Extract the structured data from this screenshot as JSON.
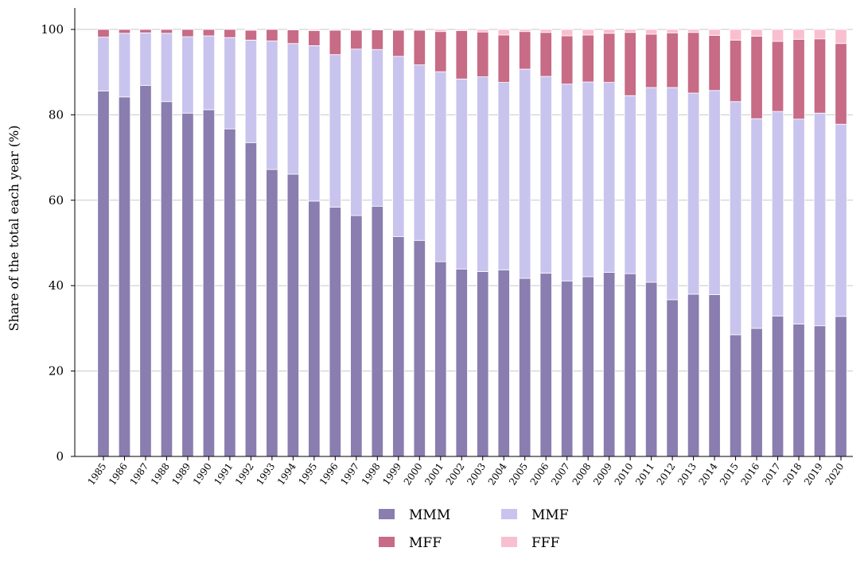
{
  "chart_data": {
    "type": "bar",
    "stacked": true,
    "ylabel": "Share of the total each year (%)",
    "xlabel": "",
    "ylim": [
      0,
      100
    ],
    "yticks": [
      0,
      20,
      40,
      60,
      80,
      100
    ],
    "grid": "horizontal",
    "legend_position": "bottom-center",
    "categories": [
      "1985",
      "1986",
      "1987",
      "1988",
      "1989",
      "1990",
      "1991",
      "1992",
      "1993",
      "1994",
      "1995",
      "1996",
      "1997",
      "1998",
      "1999",
      "2000",
      "2001",
      "2002",
      "2003",
      "2004",
      "2005",
      "2006",
      "2007",
      "2008",
      "2009",
      "2010",
      "2011",
      "2012",
      "2013",
      "2014",
      "2015",
      "2016",
      "2017",
      "2018",
      "2019",
      "2020"
    ],
    "series": [
      {
        "name": "MMM",
        "color": "#8a7daf",
        "values": [
          85.6,
          84.2,
          86.9,
          83.1,
          80.4,
          81.2,
          76.7,
          73.5,
          67.2,
          66.1,
          59.8,
          58.4,
          56.4,
          58.6,
          51.5,
          50.6,
          45.6,
          43.9,
          43.3,
          43.7,
          41.7,
          42.9,
          41.1,
          42.1,
          43.1,
          42.8,
          40.8,
          36.7,
          38.0,
          37.9,
          28.5,
          30.0,
          32.9,
          31.0,
          30.6,
          32.8
        ]
      },
      {
        "name": "MMF",
        "color": "#c9c4ee",
        "values": [
          12.6,
          14.9,
          12.3,
          16.0,
          17.9,
          17.3,
          21.4,
          24.0,
          30.1,
          30.6,
          36.4,
          35.7,
          39.0,
          36.7,
          42.2,
          41.1,
          44.5,
          44.5,
          45.6,
          43.9,
          49.0,
          46.1,
          46.1,
          45.6,
          44.5,
          41.7,
          45.6,
          49.7,
          47.1,
          47.8,
          54.6,
          49.1,
          47.9,
          48.0,
          49.8,
          45.0
        ]
      },
      {
        "name": "MFF",
        "color": "#c76b86",
        "values": [
          1.8,
          0.9,
          0.8,
          0.9,
          1.7,
          1.5,
          1.9,
          2.3,
          2.7,
          3.2,
          3.5,
          5.7,
          4.4,
          4.6,
          6.1,
          8.1,
          9.4,
          11.3,
          10.5,
          11.1,
          8.8,
          10.3,
          11.3,
          11.0,
          11.5,
          14.8,
          12.5,
          12.8,
          14.2,
          12.9,
          14.4,
          19.3,
          16.4,
          18.7,
          17.4,
          18.9
        ]
      },
      {
        "name": "FFF",
        "color": "#f9bfd0",
        "values": [
          0.0,
          0.0,
          0.0,
          0.0,
          0.0,
          0.0,
          0.0,
          0.2,
          0.0,
          0.1,
          0.3,
          0.2,
          0.2,
          0.1,
          0.2,
          0.2,
          0.5,
          0.3,
          0.6,
          1.3,
          0.5,
          0.7,
          1.5,
          1.3,
          0.9,
          0.7,
          1.1,
          0.8,
          0.7,
          1.4,
          2.5,
          1.6,
          2.8,
          2.3,
          2.2,
          3.3
        ]
      }
    ]
  }
}
